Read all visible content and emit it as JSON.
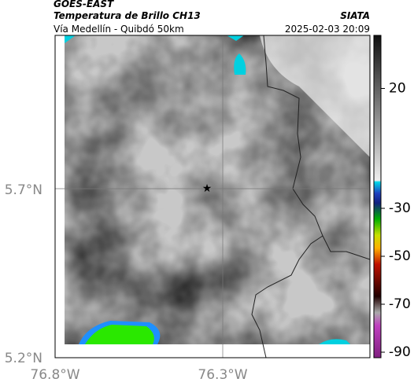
{
  "header": {
    "title": "GOES-EAST",
    "subtitle": "Temperatura de Brillo CH13",
    "location": "Vía Medellín - Quibdó 50km",
    "source": "SIATA",
    "datetime": "2025-02-03 20:09"
  },
  "map": {
    "lat_labels": [
      "5.7°N",
      "5.2°N"
    ],
    "lon_labels": [
      "76.8°W",
      "76.3°W"
    ]
  },
  "colorbar": {
    "ticks": [
      20,
      -30,
      -50,
      -70,
      -90
    ]
  }
}
